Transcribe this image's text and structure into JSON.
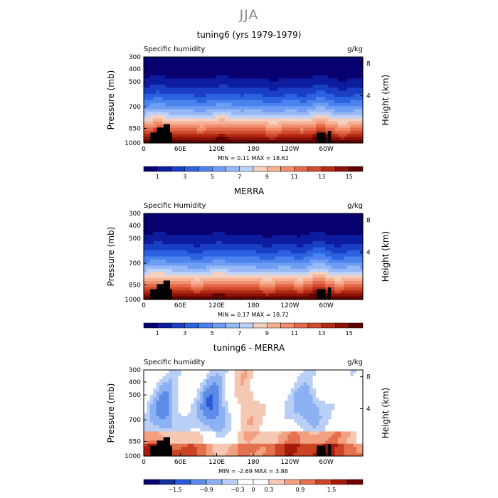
{
  "page_title": "JJA",
  "panels": [
    {
      "title": "tuning6 (yrs 1979-1979)",
      "variable_label": "Specific humidity",
      "units_label": "g/kg",
      "ylabel": "Pressure (mb)",
      "right_label": "Height (km)",
      "minmax_text": "MIN =    0.11   MAX =   18.62"
    },
    {
      "title": "MERRA",
      "variable_label": "Specific Humidity",
      "units_label": "g/kg",
      "ylabel": "Pressure (mb)",
      "right_label": "Height (km)",
      "minmax_text": "MIN =    0.17   MAX =   18.72"
    },
    {
      "title": "tuning6 - MERRA",
      "variable_label": "Specific humidity",
      "units_label": "g/kg",
      "ylabel": "Pressure (mb)",
      "right_label": "Height (km)",
      "minmax_text": "MIN =  -2.69   MAX =    3.88"
    }
  ],
  "chart_data": [
    {
      "type": "heatmap",
      "title": "tuning6 (yrs 1979-1979)",
      "ylabel": "Pressure (mb)",
      "y2label": "Height (km)",
      "x_tick_labels": [
        "0",
        "60E",
        "120E",
        "180",
        "120W",
        "60W"
      ],
      "y_tick_labels": [
        "300",
        "400",
        "500",
        "700",
        "850",
        "1000"
      ],
      "y2_tick_labels": [
        "8",
        "4"
      ],
      "colorbar_labels": [
        "1",
        "3",
        "5",
        "7",
        "9",
        "11",
        "13",
        "15"
      ],
      "min": 0.11,
      "max": 18.62,
      "units": "g/kg"
    },
    {
      "type": "heatmap",
      "title": "MERRA",
      "ylabel": "Pressure (mb)",
      "y2label": "Height (km)",
      "x_tick_labels": [
        "0",
        "60E",
        "120E",
        "180",
        "120W",
        "60W"
      ],
      "y_tick_labels": [
        "300",
        "400",
        "500",
        "700",
        "850",
        "1000"
      ],
      "y2_tick_labels": [
        "8",
        "4"
      ],
      "colorbar_labels": [
        "1",
        "3",
        "5",
        "7",
        "9",
        "11",
        "13",
        "15"
      ],
      "min": 0.17,
      "max": 18.72,
      "units": "g/kg"
    },
    {
      "type": "heatmap",
      "title": "tuning6 - MERRA",
      "ylabel": "Pressure (mb)",
      "y2label": "Height (km)",
      "x_tick_labels": [
        "0",
        "60E",
        "120E",
        "180",
        "120W",
        "60W"
      ],
      "y_tick_labels": [
        "300",
        "400",
        "500",
        "700",
        "850",
        "1000"
      ],
      "y2_tick_labels": [
        "8",
        "4"
      ],
      "colorbar_labels": [
        "−1.5",
        "−0.9",
        "−0.3",
        "0",
        "0.3",
        "0.9",
        "1.5"
      ],
      "min": -2.69,
      "max": 3.88,
      "units": "g/kg"
    }
  ],
  "colors": {
    "seq": [
      "#08006e",
      "#0d1c9e",
      "#1a3fc4",
      "#2a62e0",
      "#4a82ee",
      "#6e9df4",
      "#97b9f6",
      "#bdd2f7",
      "#f4d0c0",
      "#f6b194",
      "#f08e6e",
      "#e2694a",
      "#d14a2f",
      "#b32a14",
      "#8e1208",
      "#5c0000"
    ],
    "diff": [
      "#08006e",
      "#14309f",
      "#2a58d6",
      "#5d8be8",
      "#8cb1f2",
      "#b9cff5",
      "#ffffff",
      "#ffffff",
      "#f5c8b4",
      "#f2a080",
      "#e4714e",
      "#cc4224",
      "#a61a0c",
      "#6b0000"
    ],
    "topography": "#000000"
  }
}
